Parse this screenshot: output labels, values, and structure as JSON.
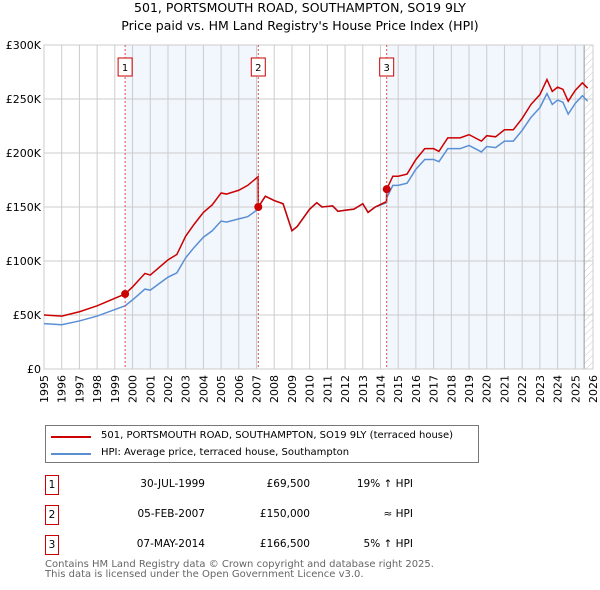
{
  "title": "501, PORTSMOUTH ROAD, SOUTHAMPTON, SO19 9LY",
  "subtitle": "Price paid vs. HM Land Registry's House Price Index (HPI)",
  "chart_data": {
    "type": "line",
    "title": "501, PORTSMOUTH ROAD, SOUTHAMPTON, SO19 9LY",
    "subtitle": "Price paid vs. HM Land Registry's House Price Index (HPI)",
    "xlim": [
      1995,
      2026
    ],
    "ylim": [
      0,
      300000
    ],
    "xticks": [
      "1995",
      "1996",
      "1997",
      "1998",
      "1999",
      "2000",
      "2001",
      "2002",
      "2003",
      "2004",
      "2005",
      "2006",
      "2007",
      "2008",
      "2009",
      "2010",
      "2011",
      "2012",
      "2013",
      "2014",
      "2015",
      "2016",
      "2017",
      "2018",
      "2019",
      "2020",
      "2021",
      "2022",
      "2023",
      "2024",
      "2025",
      "2026"
    ],
    "yticks": [
      {
        "v": 0,
        "label": "£0"
      },
      {
        "v": 50000,
        "label": "£50K"
      },
      {
        "v": 100000,
        "label": "£100K"
      },
      {
        "v": 150000,
        "label": "£150K"
      },
      {
        "v": 200000,
        "label": "£200K"
      },
      {
        "v": 250000,
        "label": "£250K"
      },
      {
        "v": 300000,
        "label": "£300K"
      }
    ],
    "grid": true,
    "x": [
      1995,
      1996,
      1997,
      1998,
      1999,
      1999.58,
      2000,
      2000.7,
      2001,
      2002,
      2002.5,
      2003,
      2003.5,
      2004,
      2004.5,
      2005,
      2005.3,
      2006,
      2006.5,
      2007.09,
      2007.1,
      2007.5,
      2008,
      2008.5,
      2009,
      2009.3,
      2010,
      2010.4,
      2010.7,
      2011.3,
      2011.6,
      2012,
      2012.5,
      2013,
      2013.3,
      2013.7,
      2014.34,
      2014.35,
      2014.7,
      2015,
      2015.5,
      2016,
      2016.5,
      2017,
      2017.3,
      2017.8,
      2018.5,
      2019,
      2019.7,
      2020,
      2020.5,
      2021,
      2021.5,
      2022,
      2022.5,
      2023,
      2023.4,
      2023.7,
      2024,
      2024.3,
      2024.6,
      2025,
      2025.4,
      2025.7
    ],
    "series": [
      {
        "name": "501, PORTSMOUTH ROAD, SOUTHAMPTON, SO19 9LY (terraced house)",
        "color": "#cc0000",
        "values": [
          50,
          49,
          53,
          58.5,
          65.5,
          69.5,
          76,
          88.5,
          87,
          101,
          106,
          123,
          134.5,
          145,
          152,
          163,
          162,
          165.5,
          170,
          178,
          150,
          160,
          156,
          153,
          128,
          132,
          148,
          154,
          150,
          151,
          146,
          147,
          148,
          153,
          145,
          150,
          155,
          166.5,
          178.5,
          178.5,
          180.5,
          194,
          204,
          204,
          201.5,
          214,
          214,
          217,
          211,
          216,
          215,
          221.5,
          221.5,
          232,
          245,
          254,
          268,
          257,
          261,
          259,
          248,
          258,
          265,
          260
        ]
      },
      {
        "name": "HPI: Average price, terraced house, Southampton",
        "color": "#5b8fd4",
        "values": [
          42,
          41,
          44.5,
          49,
          55,
          58.5,
          64,
          74,
          73,
          85,
          89,
          103,
          113,
          122,
          128,
          137,
          136,
          139,
          141,
          148,
          150,
          160,
          156,
          153,
          128,
          132,
          148,
          154,
          150,
          151,
          146,
          147,
          148,
          153,
          145,
          150,
          154,
          158.5,
          170,
          170,
          172,
          185,
          194,
          194,
          192,
          204,
          204,
          207,
          201,
          206,
          205,
          211,
          211,
          221,
          233,
          242,
          255,
          245,
          249,
          247,
          236,
          246,
          253,
          248
        ]
      }
    ],
    "value_unit": "thousands GBP",
    "sales": [
      {
        "id": "1",
        "x": 1999.58,
        "value": 69.5,
        "date": "30-JUL-1999",
        "price": "£69,500",
        "relation": "19% ↑ HPI"
      },
      {
        "id": "2",
        "x": 2007.1,
        "value": 150,
        "date": "05-FEB-2007",
        "price": "£150,000",
        "relation": "≈ HPI"
      },
      {
        "id": "3",
        "x": 2014.35,
        "value": 166.5,
        "date": "07-MAY-2014",
        "price": "£166,500",
        "relation": "5% ↑ HPI"
      }
    ],
    "shaded_ranges": [
      [
        1999.58,
        2007.1
      ],
      [
        2014.35,
        2025.5
      ]
    ],
    "forecast_hatch_from": 2025.5,
    "legend_position": "below"
  },
  "footer": [
    "Contains HM Land Registry data © Crown copyright and database right 2025.",
    "This data is licensed under the Open Government Licence v3.0."
  ]
}
